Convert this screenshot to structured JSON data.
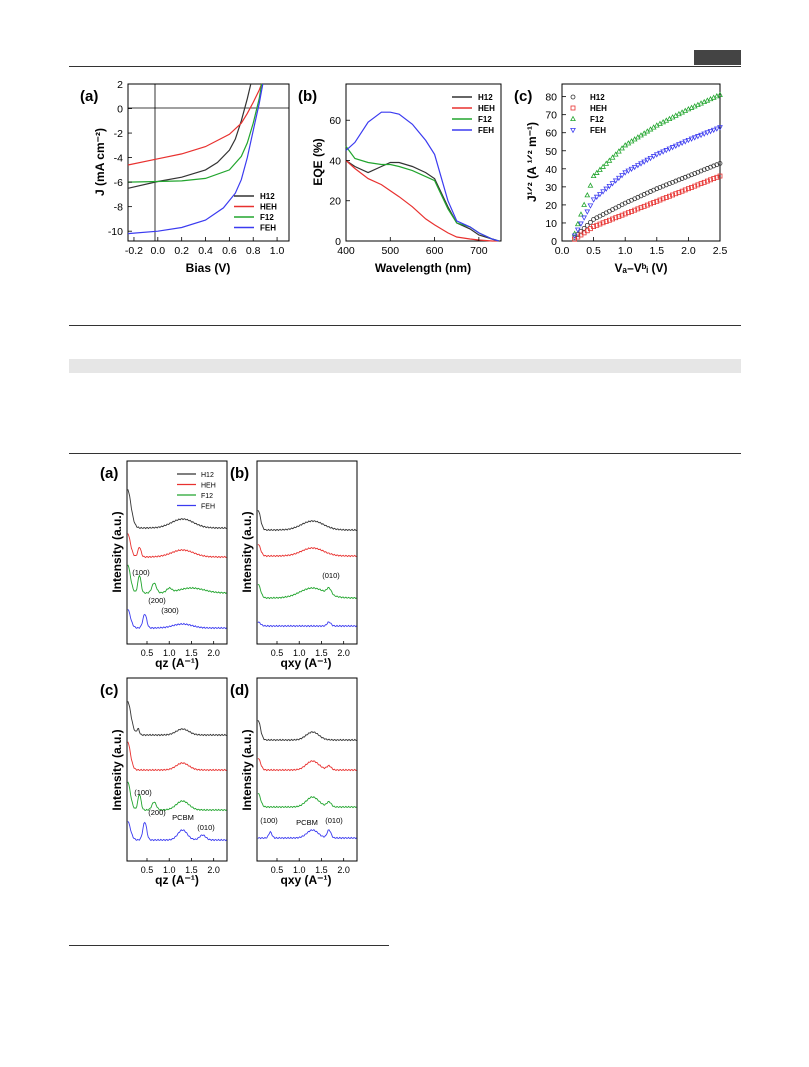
{
  "figure2": {
    "a": {
      "label": "(a)",
      "xlabel": "Bias (V)",
      "ylabel": "J (mA cm⁻²)",
      "xticks": [
        "-0.2",
        "0.0",
        "0.2",
        "0.4",
        "0.6",
        "0.8",
        "1.0"
      ],
      "yticks": [
        "2",
        "0",
        "-2",
        "-4",
        "-6",
        "-8",
        "-10"
      ],
      "legend": [
        "H12",
        "HEH",
        "F12",
        "FEH"
      ]
    },
    "b": {
      "label": "(b)",
      "xlabel": "Wavelength (nm)",
      "ylabel": "EQE (%)",
      "xticks": [
        "400",
        "500",
        "600",
        "700"
      ],
      "yticks": [
        "0",
        "20",
        "40",
        "60"
      ],
      "legend": [
        "H12",
        "HEH",
        "F12",
        "FEH"
      ]
    },
    "c": {
      "label": "(c)",
      "xlabel": "Vₐ–Vᵇᵢ (V)",
      "ylabel": "J¹ᐟ² (A ¹ᐟ² m⁻¹)",
      "xticks": [
        "0.0",
        "0.5",
        "1.0",
        "1.5",
        "2.0",
        "2.5"
      ],
      "yticks": [
        "0",
        "10",
        "20",
        "30",
        "40",
        "50",
        "60",
        "70",
        "80"
      ],
      "legend": [
        "H12",
        "HEH",
        "F12",
        "FEH"
      ]
    }
  },
  "figure3": {
    "a": {
      "label": "(a)",
      "xlabel": "qz (A⁻¹)",
      "ylabel": "Intensity (a.u.)",
      "xticks": [
        "0.5",
        "1.0",
        "1.5",
        "2.0"
      ],
      "legend": [
        "H12",
        "HEH",
        "F12",
        "FEH"
      ],
      "annotations": [
        "(100)",
        "(200)",
        "(300)"
      ]
    },
    "b": {
      "label": "(b)",
      "xlabel": "qxy (A⁻¹)",
      "xticks": [
        "0.5",
        "1.0",
        "1.5",
        "2.0"
      ],
      "annotations": [
        "(010)"
      ]
    },
    "c": {
      "label": "(c)",
      "xlabel": "qz (A⁻¹)",
      "ylabel": "Intensity (a.u.)",
      "xticks": [
        "0.5",
        "1.0",
        "1.5",
        "2.0"
      ],
      "annotations": [
        "(100)",
        "(200)",
        "PCBM",
        "(010)"
      ]
    },
    "d": {
      "label": "(d)",
      "xlabel": "qxy (A⁻¹)",
      "ylabel": "Intensity (a.u.)",
      "xticks": [
        "0.5",
        "1.0",
        "1.5",
        "2.0"
      ],
      "annotations": [
        "(100)",
        "PCBM",
        "(010)"
      ]
    }
  },
  "colors": {
    "H12": "#333333",
    "HEH": "#e8312f",
    "F12": "#22a52e",
    "FEH": "#3b3bf0"
  },
  "chart_data": [
    {
      "type": "line",
      "title": "(a)",
      "xlabel": "Bias (V)",
      "ylabel": "J (mA cm-2)",
      "xlim": [
        -0.25,
        1.1
      ],
      "ylim": [
        -10.8,
        2
      ],
      "series": [
        {
          "name": "H12",
          "x": [
            -0.25,
            0,
            0.2,
            0.4,
            0.5,
            0.6,
            0.65,
            0.7,
            0.75,
            0.78
          ],
          "y": [
            -6.5,
            -5.95,
            -5.6,
            -5.0,
            -4.4,
            -3.4,
            -2.5,
            -1.0,
            0.8,
            2
          ]
        },
        {
          "name": "HEH",
          "x": [
            -0.25,
            0,
            0.2,
            0.4,
            0.6,
            0.7,
            0.75,
            0.8,
            0.85,
            0.87
          ],
          "y": [
            -4.6,
            -4.1,
            -3.7,
            -3.1,
            -2.1,
            -1.2,
            -0.4,
            0.5,
            1.5,
            2
          ]
        },
        {
          "name": "F12",
          "x": [
            -0.25,
            0,
            0.2,
            0.4,
            0.6,
            0.7,
            0.75,
            0.8,
            0.85,
            0.87
          ],
          "y": [
            -6.0,
            -5.95,
            -5.9,
            -5.7,
            -5.0,
            -3.9,
            -2.8,
            -1.2,
            0.8,
            2
          ]
        },
        {
          "name": "FEH",
          "x": [
            -0.25,
            0,
            0.2,
            0.4,
            0.55,
            0.65,
            0.7,
            0.75,
            0.8,
            0.85,
            0.88
          ],
          "y": [
            -10.2,
            -10.0,
            -9.7,
            -9.1,
            -8.1,
            -6.9,
            -5.8,
            -4.0,
            -1.8,
            0.4,
            2
          ]
        }
      ]
    },
    {
      "type": "line",
      "title": "(b)",
      "xlabel": "Wavelength (nm)",
      "ylabel": "EQE (%)",
      "xlim": [
        400,
        750
      ],
      "ylim": [
        0,
        78
      ],
      "series": [
        {
          "name": "H12",
          "x": [
            400,
            420,
            450,
            480,
            500,
            520,
            550,
            580,
            600,
            630,
            650,
            680,
            700,
            730,
            745
          ],
          "y": [
            40,
            37,
            34,
            37,
            39,
            39,
            37,
            34,
            31,
            17,
            9,
            6,
            3,
            1,
            0
          ]
        },
        {
          "name": "HEH",
          "x": [
            400,
            420,
            450,
            480,
            500,
            520,
            550,
            580,
            600,
            630,
            650,
            680,
            700,
            730,
            745
          ],
          "y": [
            40,
            36,
            31,
            28,
            25,
            22,
            17,
            11,
            8,
            4,
            2,
            1,
            0.5,
            0,
            0
          ]
        },
        {
          "name": "F12",
          "x": [
            400,
            420,
            450,
            480,
            500,
            520,
            550,
            580,
            600,
            630,
            650,
            680,
            700,
            730,
            745
          ],
          "y": [
            47,
            41,
            39,
            38,
            38,
            37,
            35,
            32,
            30,
            16,
            9,
            7,
            4,
            1,
            0
          ]
        },
        {
          "name": "FEH",
          "x": [
            400,
            420,
            450,
            480,
            500,
            520,
            550,
            580,
            600,
            630,
            650,
            680,
            700,
            730,
            745
          ],
          "y": [
            45,
            49,
            59,
            64,
            64,
            63,
            58,
            50,
            43,
            20,
            10,
            7,
            4,
            1,
            0
          ]
        }
      ]
    },
    {
      "type": "scatter",
      "title": "(c)",
      "xlabel": "Va-Vbi (V)",
      "ylabel": "J1/2 (A 1/2 m-1)",
      "xlim": [
        0,
        2.5
      ],
      "ylim": [
        0,
        87
      ],
      "series": [
        {
          "name": "H12",
          "x": [
            0.2,
            0.5,
            1.0,
            1.5,
            2.0,
            2.5
          ],
          "y": [
            2,
            12,
            21,
            29,
            36,
            43
          ]
        },
        {
          "name": "HEH",
          "x": [
            0.2,
            0.5,
            1.0,
            1.5,
            2.0,
            2.5
          ],
          "y": [
            1,
            8,
            15,
            22,
            29,
            36
          ]
        },
        {
          "name": "F12",
          "x": [
            0.2,
            0.5,
            1.0,
            1.5,
            2.0,
            2.5
          ],
          "y": [
            4,
            36,
            53,
            64,
            73,
            81
          ]
        },
        {
          "name": "FEH",
          "x": [
            0.2,
            0.5,
            1.0,
            1.5,
            2.0,
            2.5
          ],
          "y": [
            3,
            23,
            38,
            48,
            56,
            63
          ]
        }
      ]
    }
  ]
}
